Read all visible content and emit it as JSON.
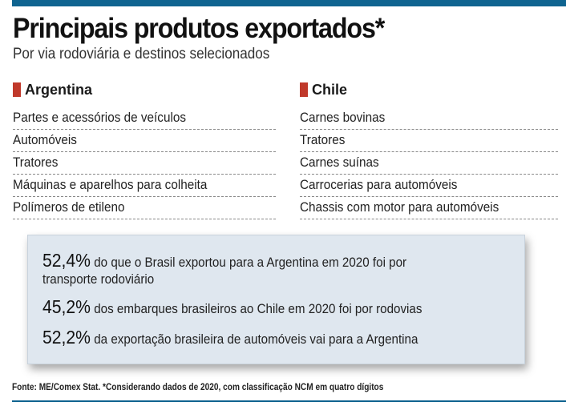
{
  "title": "Principais produtos exportados*",
  "subtitle": "Por via rodoviária e destinos selecionados",
  "accent_color": "#c0392b",
  "brand_color": "#0f6490",
  "argentina": {
    "label": "Argentina",
    "items": [
      "Partes e acessórios de veículos",
      "Automóveis",
      "Tratores",
      "Máquinas e aparelhos para colheita",
      "Polímeros de etileno"
    ]
  },
  "chile": {
    "label": "Chile",
    "items": [
      "Carnes bovinas",
      "Tratores",
      "Carnes suínas",
      "Carrocerias para automóveis",
      "Chassis com motor para automóveis"
    ]
  },
  "stats": [
    {
      "value": "52,4%",
      "text": "do que o Brasil exportou para a Argentina em 2020 foi por",
      "text2": "transporte rodoviário"
    },
    {
      "value": "45,2%",
      "text": "dos embarques brasileiros ao Chile em 2020 foi por rodovias"
    },
    {
      "value": "52,2%",
      "text": "da exportação brasileira de automóveis vai para a Argentina"
    }
  ],
  "footer": "Fonte: ME/Comex Stat. *Considerando dados de 2020, com classificação NCM em quatro dígitos"
}
